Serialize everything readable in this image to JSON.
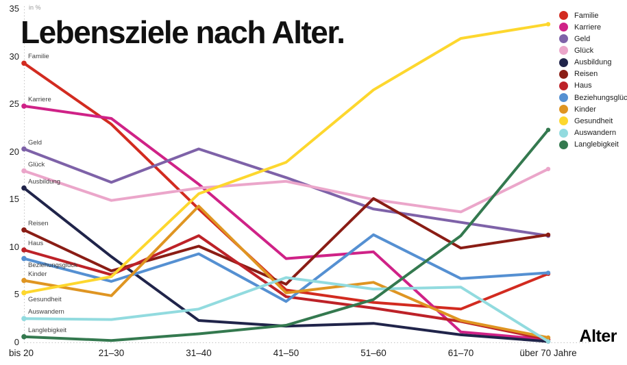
{
  "title": "Lebensziele nach Alter.",
  "unit_label": "in %",
  "x_axis_title": "Alter",
  "y_ticks": [
    0,
    5,
    10,
    15,
    20,
    25,
    30,
    35
  ],
  "chart_data": {
    "type": "line",
    "title": "Lebensziele nach Alter.",
    "ylabel": "in %",
    "xlabel": "Alter",
    "ylim": [
      0,
      35
    ],
    "ytick_step": 5,
    "grid": "dotted y-axis line and dotted zero baseline only",
    "legend_position": "top-right",
    "categories": [
      "bis 20",
      "21–30",
      "31–40",
      "41–50",
      "51–60",
      "61–70",
      "über 70 Jahre"
    ],
    "series": [
      {
        "name": "Familie",
        "color": "#d22b20",
        "values": [
          29.3,
          22.9,
          14.0,
          5.5,
          4.2,
          3.5,
          7.2
        ]
      },
      {
        "name": "Karriere",
        "color": "#cf2287",
        "values": [
          24.8,
          23.5,
          16.6,
          8.8,
          9.5,
          1.1,
          0.3
        ]
      },
      {
        "name": "Geld",
        "color": "#7e62a8",
        "values": [
          20.3,
          16.8,
          20.3,
          17.3,
          14.0,
          12.6,
          11.2
        ]
      },
      {
        "name": "Glück",
        "color": "#eba6ca",
        "values": [
          18.0,
          14.9,
          16.2,
          16.9,
          15.0,
          13.7,
          18.2
        ]
      },
      {
        "name": "Ausbildung",
        "color": "#20244a",
        "values": [
          16.2,
          9.0,
          2.3,
          1.7,
          2.0,
          0.8,
          0.1
        ]
      },
      {
        "name": "Reisen",
        "color": "#8a1d15",
        "values": [
          11.8,
          7.5,
          10.1,
          6.1,
          15.1,
          9.9,
          11.3
        ]
      },
      {
        "name": "Haus",
        "color": "#bd2228",
        "values": [
          9.7,
          7.1,
          11.2,
          4.8,
          3.6,
          2.2,
          0.3
        ]
      },
      {
        "name": "Beziehungsglück",
        "color": "#5590d2",
        "values": [
          8.8,
          6.4,
          9.3,
          4.3,
          11.3,
          6.7,
          7.3
        ]
      },
      {
        "name": "Kinder",
        "color": "#df9522",
        "values": [
          6.5,
          4.9,
          14.3,
          5.2,
          6.3,
          2.3,
          0.5
        ]
      },
      {
        "name": "Gesundheit",
        "color": "#fdd72e",
        "values": [
          5.2,
          6.9,
          15.6,
          18.9,
          26.5,
          31.9,
          33.4
        ]
      },
      {
        "name": "Auswandern",
        "color": "#92dbdf",
        "values": [
          2.5,
          2.4,
          3.5,
          6.8,
          5.6,
          5.8,
          0.1
        ]
      },
      {
        "name": "Langlebigkeit",
        "color": "#34794f",
        "values": [
          0.6,
          0.2,
          0.9,
          1.8,
          4.5,
          11.2,
          22.3
        ]
      }
    ]
  }
}
